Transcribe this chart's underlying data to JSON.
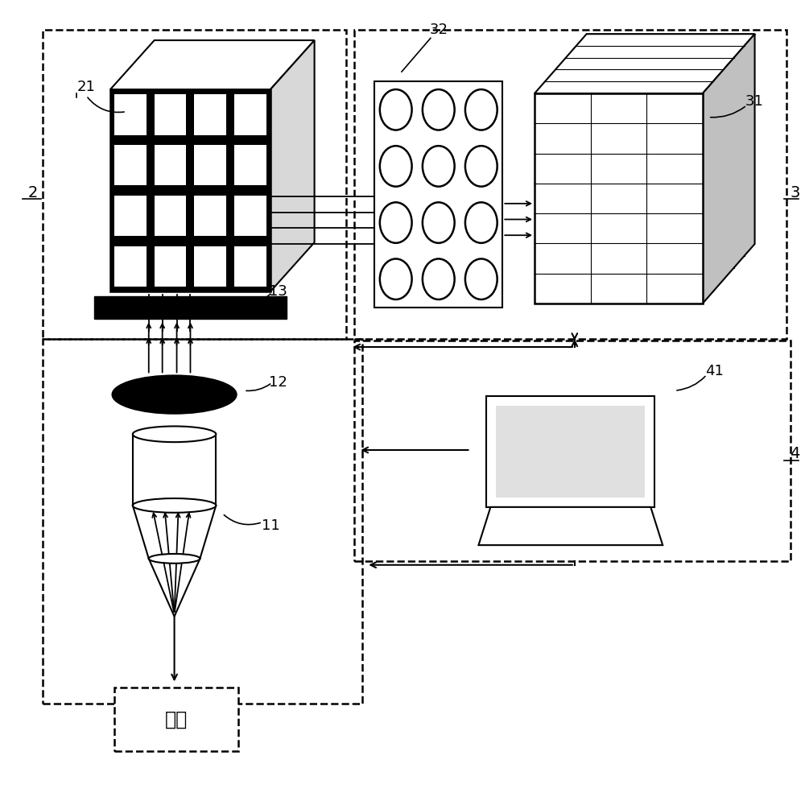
{
  "bg": "#ffffff",
  "lc": "#000000",
  "sample_text": "样本",
  "fig_w": 10.0,
  "fig_h": 9.9,
  "dpi": 100
}
